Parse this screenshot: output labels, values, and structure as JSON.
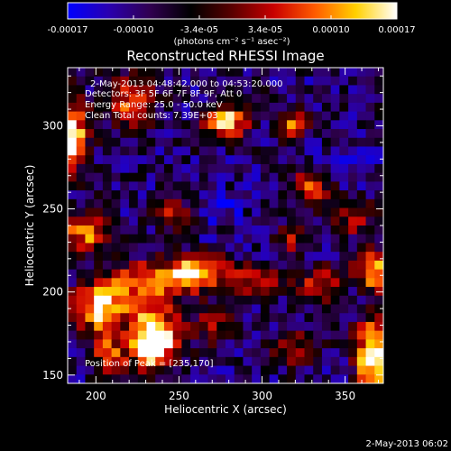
{
  "colorbar": {
    "min": -0.00017,
    "max": 0.00017,
    "tick_labels": [
      "-0.00017",
      "-0.00010",
      "-3.4e-05",
      "3.4e-05",
      "0.00010",
      "0.00017"
    ],
    "unit_label": "(photons cm⁻² s⁻¹ asec⁻²)",
    "colormap": [
      "#0000ff",
      "#2a00b0",
      "#300050",
      "#000000",
      "#5a0000",
      "#c80000",
      "#ff5a00",
      "#ffd000",
      "#ffffff"
    ]
  },
  "chart_data": {
    "type": "heatmap",
    "title": "Reconstructed RHESSI Image",
    "xlabel": "Heliocentric X (arcsec)",
    "ylabel": "Heliocentric Y (arcsec)",
    "xlim": [
      183,
      373
    ],
    "ylim": [
      145,
      335
    ],
    "xticks": [
      200,
      250,
      300,
      350
    ],
    "yticks": [
      150,
      200,
      250,
      300
    ],
    "info_lines": [
      "2-May-2013 04:48:42.000 to 04:53:20.000",
      "Detectors: 3F 5F 6F 7F 8F 9F, Att 0",
      "Energy Range: 25.0 - 50.0 keV",
      "Clean    Total counts: 7.39E+03"
    ],
    "peak_label": "Position of Peak = [235,170]",
    "background_level": -9e-05,
    "sources": [
      {
        "x": 185,
        "y": 295,
        "sx": 7,
        "sy": 14,
        "amp": 0.00027
      },
      {
        "x": 221,
        "y": 315,
        "sx": 9,
        "sy": 10,
        "amp": 0.00018
      },
      {
        "x": 278,
        "y": 303,
        "sx": 9,
        "sy": 7,
        "amp": 0.00026
      },
      {
        "x": 193,
        "y": 235,
        "sx": 10,
        "sy": 9,
        "amp": 0.00018
      },
      {
        "x": 318,
        "y": 300,
        "sx": 6,
        "sy": 6,
        "amp": 0.00017
      },
      {
        "x": 330,
        "y": 263,
        "sx": 8,
        "sy": 7,
        "amp": 0.00016
      },
      {
        "x": 248,
        "y": 247,
        "sx": 7,
        "sy": 6,
        "amp": 0.00014
      },
      {
        "x": 262,
        "y": 212,
        "sx": 14,
        "sy": 7,
        "amp": 0.00022
      },
      {
        "x": 232,
        "y": 206,
        "sx": 16,
        "sy": 8,
        "amp": 0.0002
      },
      {
        "x": 300,
        "y": 206,
        "sx": 10,
        "sy": 6,
        "amp": 0.00016
      },
      {
        "x": 335,
        "y": 205,
        "sx": 8,
        "sy": 7,
        "amp": 0.00016
      },
      {
        "x": 368,
        "y": 213,
        "sx": 8,
        "sy": 8,
        "amp": 0.00022
      },
      {
        "x": 203,
        "y": 190,
        "sx": 11,
        "sy": 10,
        "amp": 0.00026
      },
      {
        "x": 235,
        "y": 172,
        "sx": 10,
        "sy": 13,
        "amp": 0.00034
      },
      {
        "x": 208,
        "y": 162,
        "sx": 7,
        "sy": 7,
        "amp": 0.00018
      },
      {
        "x": 367,
        "y": 162,
        "sx": 7,
        "sy": 14,
        "amp": 0.00031
      },
      {
        "x": 270,
        "y": 180,
        "sx": 8,
        "sy": 7,
        "amp": 0.00012
      },
      {
        "x": 320,
        "y": 165,
        "sx": 9,
        "sy": 7,
        "amp": 0.00013
      },
      {
        "x": 318,
        "y": 232,
        "sx": 7,
        "sy": 7,
        "amp": 0.00011
      },
      {
        "x": 355,
        "y": 245,
        "sx": 8,
        "sy": 8,
        "amp": 0.00012
      },
      {
        "x": 272,
        "y": 250,
        "sx": 8,
        "sy": 6,
        "amp": -9e-05
      },
      {
        "x": 352,
        "y": 280,
        "sx": 8,
        "sy": 8,
        "amp": -6e-05
      }
    ]
  },
  "footer": {
    "timestamp": "2-May-2013 06:02"
  }
}
